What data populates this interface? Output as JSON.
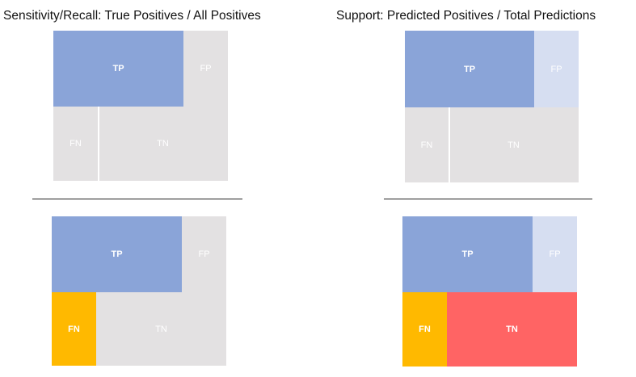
{
  "titles": {
    "left": "Sensitivity/Recall: True Positives / All Positives",
    "right": "Support: Predicted Positives / Total Predictions"
  },
  "diagrams": {
    "top_left": {
      "tp": "TP",
      "fp": "FP",
      "fn": "FN",
      "tn": "TN"
    },
    "bottom_left": {
      "tp": "TP",
      "fp": "FP",
      "fn": "FN",
      "tn": "TN"
    },
    "top_right": {
      "tp": "TP",
      "fp": "FP",
      "fn": "FN",
      "tn": "TN"
    },
    "bottom_right": {
      "tp": "TP",
      "fp": "FP",
      "fn": "FN",
      "tn": "TN"
    }
  },
  "colors": {
    "tp": "#8AA4D8",
    "neutral": "#E3E1E2",
    "fp_light_blue": "#D6DEF1",
    "fn_highlight": "#FFB900",
    "tn_highlight": "#FF6464",
    "label_dark": "#FFFFFF",
    "label_light": "#FFFFFF"
  }
}
